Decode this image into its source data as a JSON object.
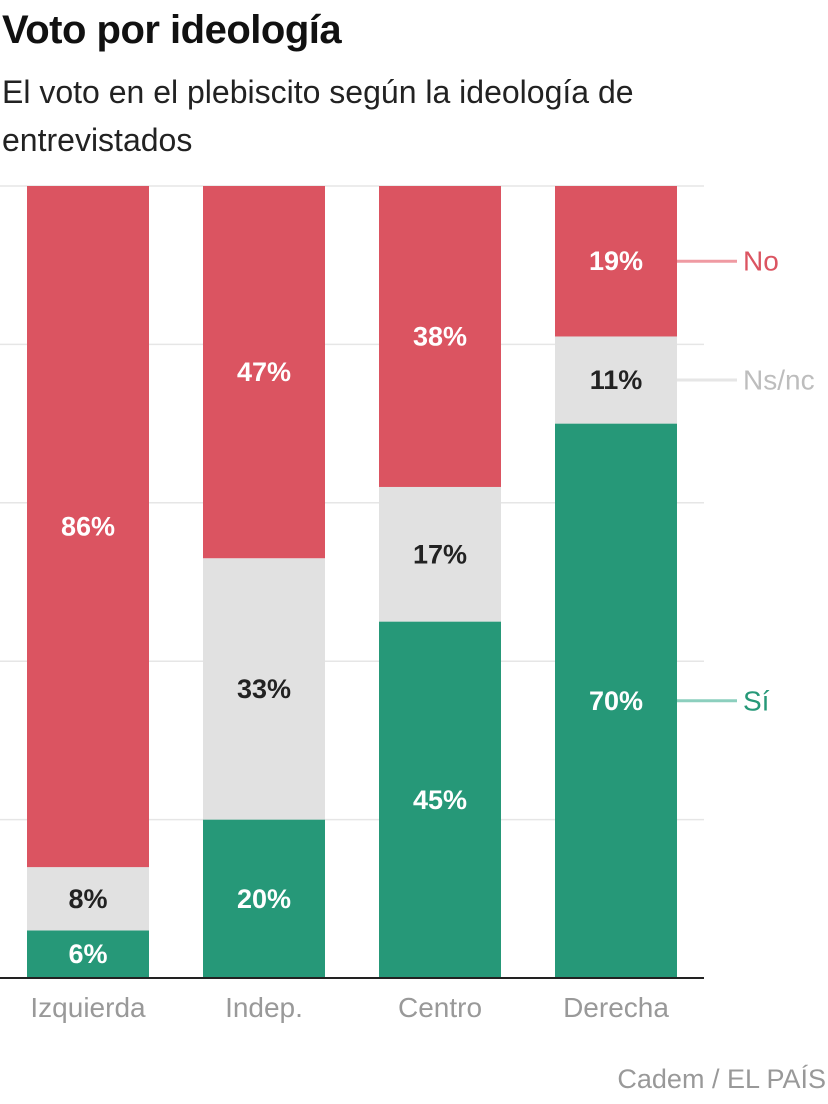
{
  "title": "Voto por ideología",
  "subtitle": "El voto en el plebiscito según la ideología de entrevistados",
  "source": "Cadem / EL PAÍS",
  "colors": {
    "si": "#269878",
    "nsnc": "#e1e1e1",
    "no": "#db5461",
    "si_line": "#8ccfbe",
    "nsnc_line": "#e6e6e6",
    "no_line": "#ef9aa2",
    "grid": "#e6e6e6",
    "axis": "#222222",
    "tick": "#999999"
  },
  "chart_data": {
    "type": "bar",
    "stacked": true,
    "categories": [
      "Izquierda",
      "Indep.",
      "Centro",
      "Derecha"
    ],
    "ylim": [
      0,
      100
    ],
    "grid": true,
    "series": [
      {
        "name": "Sí",
        "key": "si",
        "values": [
          6,
          20,
          45,
          70
        ],
        "labels": [
          "6%",
          "20%",
          "45%",
          "70%"
        ]
      },
      {
        "name": "Ns/nc",
        "key": "nsnc",
        "values": [
          8,
          33,
          17,
          11
        ],
        "labels": [
          "8%",
          "33%",
          "17%",
          "11%"
        ]
      },
      {
        "name": "No",
        "key": "no",
        "values": [
          86,
          47,
          38,
          19
        ],
        "labels": [
          "86%",
          "47%",
          "38%",
          "19%"
        ]
      }
    ],
    "legend_placement": "right"
  }
}
